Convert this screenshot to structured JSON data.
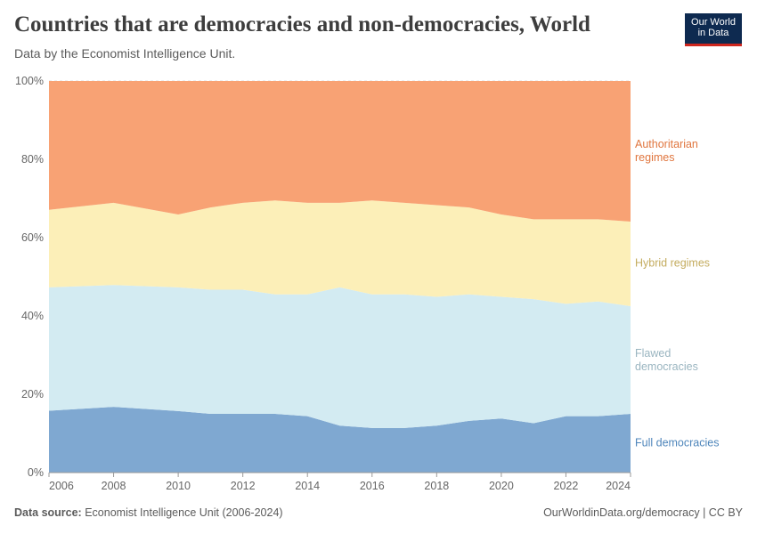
{
  "logo": [
    "Our World",
    "in Data"
  ],
  "chart_data": {
    "type": "stacked_area",
    "title": "Countries that are democracies and non-democracies, World",
    "subtitle": "Data by the Economist Intelligence Unit.",
    "source_label": "Data source:",
    "source": "Economist Intelligence Unit (2006-2024)",
    "credit": "OurWorldinData.org/democracy | CC BY",
    "x": [
      2006,
      2008,
      2010,
      2011,
      2012,
      2013,
      2014,
      2015,
      2016,
      2017,
      2018,
      2019,
      2020,
      2021,
      2022,
      2023,
      2024
    ],
    "xlim": [
      2006,
      2024
    ],
    "xticks": [
      2006,
      2008,
      2010,
      2012,
      2014,
      2016,
      2018,
      2020,
      2022,
      2024
    ],
    "ylim": [
      0,
      100
    ],
    "yticks": [
      {
        "value": 0,
        "label": "0%"
      },
      {
        "value": 20,
        "label": "20%"
      },
      {
        "value": 40,
        "label": "40%"
      },
      {
        "value": 60,
        "label": "60%"
      },
      {
        "value": 80,
        "label": "80%"
      },
      {
        "value": 100,
        "label": "100%"
      }
    ],
    "grid": true,
    "series": [
      {
        "name": "Full democracies",
        "color": "#7fa8d1",
        "label_color": "#4f86bb",
        "values": [
          15.8,
          16.8,
          15.7,
          15.0,
          15.0,
          15.0,
          14.4,
          12.0,
          11.4,
          11.4,
          12.0,
          13.2,
          13.8,
          12.6,
          14.4,
          14.4,
          15.0
        ]
      },
      {
        "name": "Flawed democracies",
        "color": "#d3ebf2",
        "label_color": "#9ab5c0",
        "values": [
          31.5,
          31.1,
          31.6,
          31.7,
          31.7,
          30.5,
          31.1,
          35.3,
          34.1,
          34.1,
          32.9,
          32.3,
          31.1,
          31.7,
          28.7,
          29.3,
          27.5
        ]
      },
      {
        "name": "Hybrid regimes",
        "color": "#fcefb8",
        "label_color": "#c4ac5f",
        "values": [
          19.8,
          21.0,
          18.6,
          21.0,
          22.2,
          24.0,
          23.4,
          21.6,
          24.0,
          23.4,
          23.4,
          22.2,
          21.0,
          20.4,
          21.6,
          21.0,
          21.6
        ]
      },
      {
        "name": "Authoritarian regimes",
        "color": "#f8a274",
        "label_color": "#e0763f",
        "values": [
          32.9,
          31.1,
          34.1,
          32.3,
          31.1,
          30.5,
          31.1,
          31.1,
          30.5,
          31.1,
          31.7,
          32.3,
          34.1,
          35.3,
          35.3,
          35.3,
          35.9
        ]
      }
    ]
  }
}
